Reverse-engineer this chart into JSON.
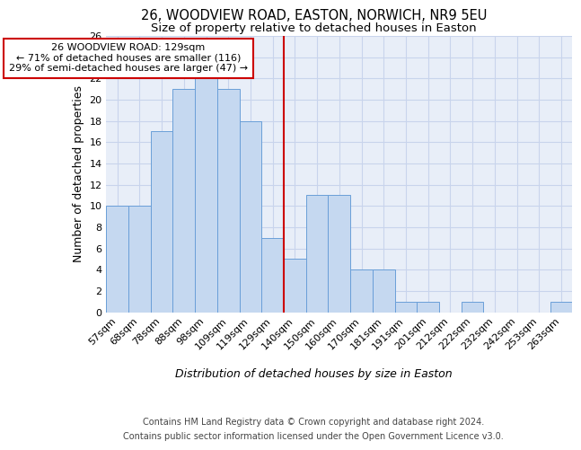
{
  "title1": "26, WOODVIEW ROAD, EASTON, NORWICH, NR9 5EU",
  "title2": "Size of property relative to detached houses in Easton",
  "xlabel": "Distribution of detached houses by size in Easton",
  "ylabel": "Number of detached properties",
  "categories": [
    "57sqm",
    "68sqm",
    "78sqm",
    "88sqm",
    "98sqm",
    "109sqm",
    "119sqm",
    "129sqm",
    "140sqm",
    "150sqm",
    "160sqm",
    "170sqm",
    "181sqm",
    "191sqm",
    "201sqm",
    "212sqm",
    "222sqm",
    "232sqm",
    "242sqm",
    "253sqm",
    "263sqm"
  ],
  "values": [
    10,
    10,
    17,
    21,
    22,
    21,
    18,
    7,
    5,
    11,
    11,
    4,
    4,
    1,
    1,
    0,
    1,
    0,
    0,
    0,
    1
  ],
  "bar_color": "#c5d8f0",
  "bar_edge_color": "#6a9fd8",
  "reference_line_color": "#cc0000",
  "annotation_text": "26 WOODVIEW ROAD: 129sqm\n← 71% of detached houses are smaller (116)\n29% of semi-detached houses are larger (47) →",
  "annotation_box_color": "#ffffff",
  "annotation_box_edge_color": "#cc0000",
  "ylim": [
    0,
    26
  ],
  "yticks": [
    0,
    2,
    4,
    6,
    8,
    10,
    12,
    14,
    16,
    18,
    20,
    22,
    24,
    26
  ],
  "grid_color": "#c8d4ec",
  "background_color": "#e8eef8",
  "footer1": "Contains HM Land Registry data © Crown copyright and database right 2024.",
  "footer2": "Contains public sector information licensed under the Open Government Licence v3.0.",
  "title1_fontsize": 10.5,
  "title2_fontsize": 9.5,
  "axis_label_fontsize": 9,
  "tick_fontsize": 8,
  "annotation_fontsize": 8,
  "footer_fontsize": 7
}
